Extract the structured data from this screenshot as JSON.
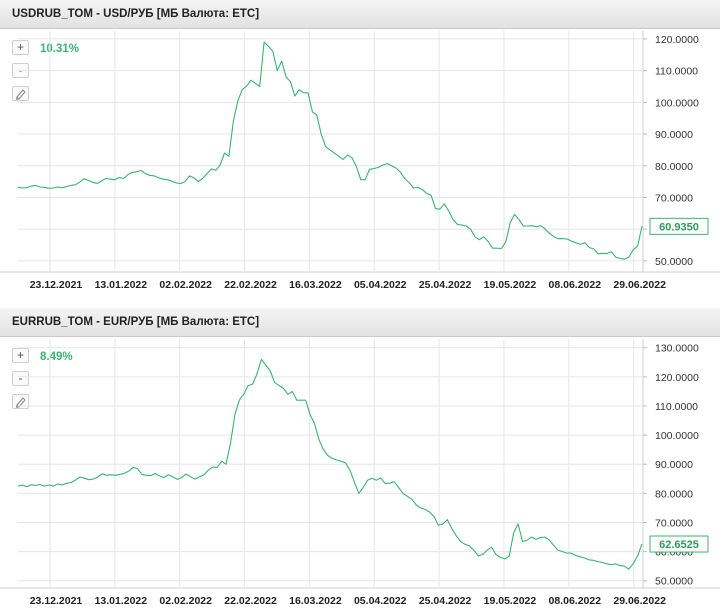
{
  "chart_data": [
    {
      "type": "line",
      "title": "USDRUB_TOM - USD/РУБ [МБ Валюта: ETC]",
      "change_percent": "10.31%",
      "last_value_label": "60.9350",
      "y_tick_labels": [
        "120.0000",
        "110.0000",
        "100.0000",
        "90.0000",
        "80.0000",
        "70.0000",
        "60.0000",
        "50.0000"
      ],
      "y_ticks": [
        120,
        110,
        100,
        90,
        80,
        70,
        60,
        50
      ],
      "ylim": [
        46.5,
        122.5
      ],
      "x_tick_labels": [
        "23.12.2021",
        "13.01.2022",
        "02.02.2022",
        "22.02.2022",
        "16.03.2022",
        "05.04.2022",
        "25.04.2022",
        "19.05.2022",
        "08.06.2022",
        "29.06.2022"
      ],
      "series": [
        {
          "name": "USD/РУБ",
          "color": "#3cb371",
          "values": [
            73.2,
            73.0,
            73.1,
            73.6,
            73.8,
            73.3,
            73.2,
            72.9,
            73.0,
            73.3,
            73.1,
            73.4,
            73.8,
            74.0,
            74.8,
            75.9,
            75.4,
            74.8,
            74.4,
            75.2,
            76.0,
            75.8,
            75.6,
            76.3,
            76.0,
            77.2,
            77.9,
            78.1,
            78.5,
            77.5,
            77.0,
            76.8,
            76.2,
            75.8,
            75.6,
            75.1,
            74.6,
            74.4,
            75.0,
            76.8,
            76.2,
            75.0,
            76.0,
            77.5,
            79.0,
            78.6,
            80.2,
            84.0,
            83.0,
            94.0,
            100.3,
            104.0,
            105.1,
            107.0,
            106.0,
            105.0,
            119.0,
            117.7,
            116.0,
            110.0,
            113.0,
            108.0,
            106.5,
            102.0,
            104.0,
            103.0,
            103.0,
            97.0,
            96.0,
            90.0,
            86.0,
            85.0,
            84.0,
            83.0,
            82.0,
            83.4,
            82.5,
            79.7,
            75.6,
            75.6,
            78.9,
            79.1,
            79.5,
            80.2,
            80.7,
            80.0,
            79.3,
            78.0,
            76.0,
            74.7,
            73.0,
            73.2,
            72.5,
            71.3,
            70.7,
            66.5,
            66.3,
            68.0,
            65.8,
            63.1,
            61.5,
            61.3,
            61.0,
            60.0,
            57.6,
            56.7,
            57.6,
            56.1,
            54.0,
            54.0,
            53.9,
            56.0,
            62.0,
            64.7,
            63.0,
            61.0,
            61.0,
            61.1,
            60.8,
            61.1,
            60.0,
            58.6,
            57.6,
            57.0,
            57.0,
            56.9,
            56.2,
            55.7,
            55.2,
            55.7,
            54.2,
            53.8,
            52.2,
            52.4,
            52.3,
            52.9,
            51.2,
            50.8,
            50.5,
            51.2,
            53.5,
            54.7,
            60.9
          ]
        }
      ]
    },
    {
      "type": "line",
      "title": "EURRUB_TOM - EUR/РУБ [МБ Валюта: ETC]",
      "change_percent": "8.49%",
      "last_value_label": "62.6525",
      "y_tick_labels": [
        "130.0000",
        "120.0000",
        "110.0000",
        "100.0000",
        "90.0000",
        "80.0000",
        "70.0000",
        "60.0000",
        "50.0000"
      ],
      "y_ticks": [
        130,
        120,
        110,
        100,
        90,
        80,
        70,
        60,
        50
      ],
      "ylim": [
        47.5,
        133.0
      ],
      "x_tick_labels": [
        "23.12.2021",
        "13.01.2022",
        "02.02.2022",
        "22.02.2022",
        "16.03.2022",
        "05.04.2022",
        "25.04.2022",
        "19.05.2022",
        "08.06.2022",
        "29.06.2022"
      ],
      "series": [
        {
          "name": "EUR/РУБ",
          "color": "#3cb371",
          "values": [
            82.5,
            82.8,
            82.3,
            83.0,
            82.7,
            83.0,
            82.5,
            82.9,
            82.5,
            83.2,
            82.9,
            83.5,
            83.7,
            84.6,
            85.6,
            85.2,
            84.7,
            84.9,
            85.6,
            86.7,
            86.2,
            86.4,
            86.2,
            86.5,
            86.8,
            87.6,
            88.9,
            88.5,
            86.5,
            86.2,
            86.1,
            86.8,
            86.0,
            85.4,
            86.4,
            85.7,
            84.8,
            85.4,
            86.6,
            85.7,
            84.9,
            85.7,
            86.3,
            88.0,
            89.0,
            88.9,
            91.0,
            90.0,
            97.0,
            107.0,
            112.0,
            114.0,
            117.0,
            117.5,
            121.0,
            126.0,
            124.0,
            122.0,
            118.0,
            117.0,
            116.0,
            114.0,
            115.0,
            112.0,
            112.0,
            112.0,
            107.0,
            104.0,
            98.5,
            95.0,
            93.0,
            92.0,
            91.5,
            91.0,
            90.5,
            88.0,
            84.0,
            80.0,
            82.0,
            84.5,
            85.2,
            84.5,
            85.3,
            83.3,
            83.5,
            84.0,
            82.0,
            80.0,
            79.0,
            78.0,
            76.0,
            75.0,
            74.5,
            73.6,
            72.0,
            69.0,
            69.5,
            71.0,
            68.0,
            65.5,
            63.5,
            62.5,
            62.0,
            60.5,
            58.5,
            59.0,
            60.5,
            61.5,
            59.0,
            58.0,
            57.5,
            58.5,
            66.5,
            69.5,
            63.5,
            63.8,
            65.0,
            64.2,
            64.8,
            65.0,
            64.0,
            62.2,
            60.5,
            60.0,
            59.5,
            59.5,
            58.7,
            58.2,
            57.8,
            57.2,
            57.0,
            56.6,
            56.3,
            55.8,
            55.5,
            55.8,
            55.2,
            55.0,
            54.0,
            55.8,
            58.5,
            62.6
          ]
        }
      ]
    }
  ]
}
